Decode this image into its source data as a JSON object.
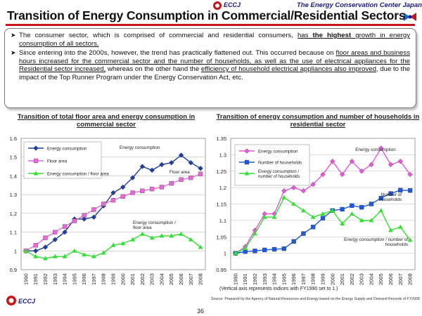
{
  "header": {
    "org_short": "ECCJ",
    "center_name": "The Energy Conservation Center Japan"
  },
  "title": "Transition of Energy Consumption in Commercial/Residential Sectors",
  "bullets": [
    {
      "segments": [
        {
          "text": "The consumer sector, which is comprised of commercial and residential consumers, ",
          "style": ""
        },
        {
          "text": "has ",
          "style": "u"
        },
        {
          "text": "the highest",
          "style": "u b"
        },
        {
          "text": " growth in energy consumption of all sectors.",
          "style": "u"
        }
      ]
    },
    {
      "segments": [
        {
          "text": "Since entering into the 2000s, however, the trend has practically flattened out. This occurred because on ",
          "style": ""
        },
        {
          "text": "floor areas and business hours increased for the commercial sector and the number of households, as well as the use of electrical appliances for the Residential sector increased,",
          "style": "u"
        },
        {
          "text": " whereas on the other hand the ",
          "style": ""
        },
        {
          "text": "efficiency of household electrical appliances also improved",
          "style": "u"
        },
        {
          "text": ", due to the impact of the Top Runner Program under the Energy Conservation Act, etc.",
          "style": ""
        }
      ]
    }
  ],
  "chart_data": [
    {
      "type": "line",
      "title": "Transition of total floor area and energy consumption in commercial sector",
      "categories": [
        "1990",
        "1991",
        "1992",
        "1993",
        "1994",
        "1995",
        "1996",
        "1997",
        "1998",
        "1999",
        "2000",
        "2001",
        "2002",
        "2003",
        "2004",
        "2005",
        "2006",
        "2007",
        "2008"
      ],
      "ylim": [
        0.9,
        1.6
      ],
      "yticks": [
        "0.9",
        "1",
        "1.1",
        "1.2",
        "1.3",
        "1.4",
        "1.5",
        "1.6"
      ],
      "legend_position": "top-left",
      "series": [
        {
          "name": "Energy consumption",
          "color": "#1f3f9f",
          "marker": "diamond",
          "values": [
            1.0,
            1.0,
            1.02,
            1.06,
            1.1,
            1.17,
            1.17,
            1.18,
            1.24,
            1.31,
            1.34,
            1.39,
            1.45,
            1.43,
            1.46,
            1.47,
            1.51,
            1.47,
            1.44
          ]
        },
        {
          "name": "Floor area",
          "color": "#e66ad6",
          "marker": "square",
          "values": [
            1.0,
            1.03,
            1.07,
            1.1,
            1.13,
            1.16,
            1.19,
            1.22,
            1.25,
            1.27,
            1.29,
            1.31,
            1.32,
            1.33,
            1.34,
            1.36,
            1.38,
            1.39,
            1.41
          ]
        },
        {
          "name": "Energy consumption / floor area",
          "color": "#33e033",
          "marker": "triangle",
          "values": [
            1.0,
            0.97,
            0.96,
            0.97,
            0.97,
            1.0,
            0.98,
            0.97,
            0.99,
            1.03,
            1.04,
            1.06,
            1.09,
            1.07,
            1.08,
            1.08,
            1.09,
            1.06,
            1.02
          ]
        }
      ],
      "annotations": [
        {
          "text": "Energy consumption",
          "series": 0
        },
        {
          "text": "Floor area",
          "series": 1
        },
        {
          "text": "Energy consumption / floor area",
          "series": 2
        }
      ]
    },
    {
      "type": "line",
      "title": "Transition of energy consumption and number of households in residential sector",
      "categories": [
        "1990",
        "1991",
        "1992",
        "1993",
        "1994",
        "1995",
        "1996",
        "1997",
        "1998",
        "1999",
        "2000",
        "2001",
        "2002",
        "2003",
        "2004",
        "2005",
        "2006",
        "2007",
        "2008"
      ],
      "ylim": [
        0.95,
        1.35
      ],
      "yticks": [
        "0.95",
        "1",
        "1.05",
        "1.1",
        "1.15",
        "1.2",
        "1.25",
        "1.3",
        "1.35"
      ],
      "legend_position": "top-left",
      "series": [
        {
          "name": "Energy consumption",
          "color": "#e35ad6",
          "marker": "diamond",
          "values": [
            1.0,
            1.02,
            1.07,
            1.12,
            1.12,
            1.19,
            1.2,
            1.19,
            1.21,
            1.24,
            1.28,
            1.24,
            1.28,
            1.25,
            1.27,
            1.32,
            1.27,
            1.28,
            1.24
          ]
        },
        {
          "name": "Number of households",
          "color": "#1f58d8",
          "marker": "square",
          "values": [
            1.0,
            1.005,
            1.007,
            1.01,
            1.012,
            1.014,
            1.036,
            1.06,
            1.08,
            1.107,
            1.13,
            1.134,
            1.145,
            1.14,
            1.15,
            1.168,
            1.182,
            1.192,
            1.191
          ]
        },
        {
          "name": "Energy consumption / number of households",
          "color": "#33e033",
          "marker": "triangle",
          "values": [
            1.0,
            1.015,
            1.06,
            1.11,
            1.11,
            1.17,
            1.15,
            1.13,
            1.11,
            1.12,
            1.13,
            1.09,
            1.12,
            1.1,
            1.1,
            1.13,
            1.07,
            1.08,
            1.04
          ]
        }
      ],
      "annotations": [
        {
          "text": "Energy consumption",
          "series": 0
        },
        {
          "text": "Number of households",
          "series": 1
        },
        {
          "text": "Energy consumption / number of households",
          "series": 2
        }
      ]
    }
  ],
  "note": "(Vertical axis represents indices with FY1990 set to 1.)",
  "source": "Source: Prepared by the Agency of Natural Resources and Energy based on the Energy Supply and Demand Records of FY2008",
  "page_number": "36",
  "footer_org": "ECCJ"
}
